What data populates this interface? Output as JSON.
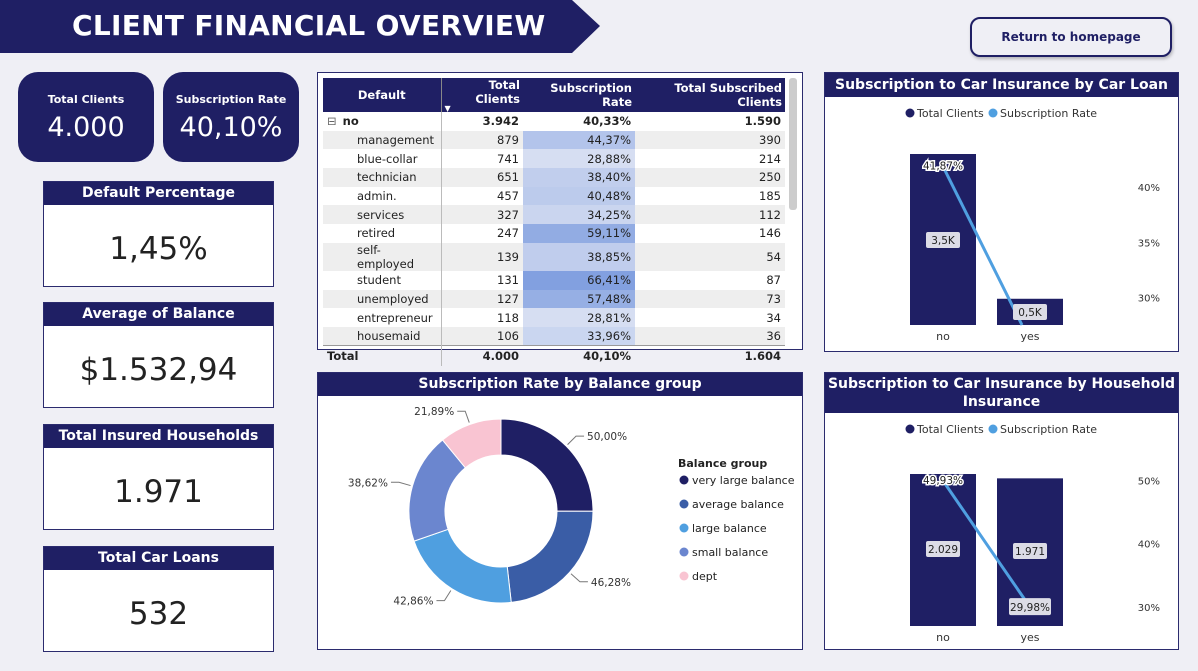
{
  "header": {
    "title": "CLIENT FINANCIAL OVERVIEW",
    "home_button": "Return to homepage"
  },
  "kpis": {
    "total_clients": {
      "label": "Total Clients",
      "value": "4.000"
    },
    "subscription_rate": {
      "label": "Subscription Rate",
      "value": "40,10%"
    },
    "default_percentage": {
      "label": "Default Percentage",
      "value": "1,45%"
    },
    "average_balance": {
      "label": "Average of Balance",
      "value": "$1.532,94"
    },
    "insured_households": {
      "label": "Total Insured Households",
      "value": "1.971"
    },
    "car_loans": {
      "label": "Total Car Loans",
      "value": "532"
    }
  },
  "table": {
    "columns": [
      "Default",
      "Total Clients",
      "Subscription Rate",
      "Total Subscribed Clients"
    ],
    "group": {
      "expander": "⊟",
      "label": "no",
      "total": "3.942",
      "rate": "40,33%",
      "subscribed": "1.590"
    },
    "rows": [
      {
        "job": "management",
        "total": "879",
        "rate": "44,37%",
        "rate_value": 44.37,
        "subscribed": "390"
      },
      {
        "job": "blue-collar",
        "total": "741",
        "rate": "28,88%",
        "rate_value": 28.88,
        "subscribed": "214"
      },
      {
        "job": "technician",
        "total": "651",
        "rate": "38,40%",
        "rate_value": 38.4,
        "subscribed": "250"
      },
      {
        "job": "admin.",
        "total": "457",
        "rate": "40,48%",
        "rate_value": 40.48,
        "subscribed": "185"
      },
      {
        "job": "services",
        "total": "327",
        "rate": "34,25%",
        "rate_value": 34.25,
        "subscribed": "112"
      },
      {
        "job": "retired",
        "total": "247",
        "rate": "59,11%",
        "rate_value": 59.11,
        "subscribed": "146"
      },
      {
        "job": "self-employed",
        "total": "139",
        "rate": "38,85%",
        "rate_value": 38.85,
        "subscribed": "54"
      },
      {
        "job": "student",
        "total": "131",
        "rate": "66,41%",
        "rate_value": 66.41,
        "subscribed": "87"
      },
      {
        "job": "unemployed",
        "total": "127",
        "rate": "57,48%",
        "rate_value": 57.48,
        "subscribed": "73"
      },
      {
        "job": "entrepreneur",
        "total": "118",
        "rate": "28,81%",
        "rate_value": 28.81,
        "subscribed": "34"
      },
      {
        "job": "housemaid",
        "total": "106",
        "rate": "33,96%",
        "rate_value": 33.96,
        "subscribed": "36"
      }
    ],
    "total": {
      "label": "Total",
      "total": "4.000",
      "rate": "40,10%",
      "subscribed": "1.604"
    }
  },
  "colors": {
    "navy": "#1f1f64",
    "line": "#4f9fe0",
    "pie": [
      "#1f1f64",
      "#3a5da6",
      "#4f9fe0",
      "#6b86cf",
      "#f9c4d2"
    ]
  },
  "chart_data": [
    {
      "type": "bar",
      "title": "Subscription to Car Insurance by Car Loan",
      "legend": [
        "Total Clients",
        "Subscription Rate"
      ],
      "categories": [
        "no",
        "yes"
      ],
      "series": [
        {
          "name": "Total Clients",
          "values": [
            3468,
            532
          ],
          "labels": [
            "3,5K",
            "0,5K"
          ]
        },
        {
          "name": "Subscription Rate",
          "type": "line",
          "values": [
            41.87,
            27.5
          ],
          "labels": [
            "41,87%",
            ""
          ]
        }
      ],
      "y2_ticks": [
        "40%",
        "35%",
        "30%"
      ],
      "y2_tick_values": [
        40,
        35,
        30
      ],
      "y2lim": [
        27.5,
        43
      ]
    },
    {
      "type": "pie",
      "title": "Subscription Rate by Balance group",
      "legend_title": "Balance group",
      "categories": [
        "very large balance",
        "average balance",
        "large balance",
        "small balance",
        "dept"
      ],
      "values": [
        50.0,
        46.28,
        42.86,
        38.62,
        21.89
      ],
      "labels": [
        "50,00%",
        "46,28%",
        "42,86%",
        "38,62%",
        "21,89%"
      ]
    },
    {
      "type": "bar",
      "title": "Subscription to Car Insurance by Household Insurance",
      "legend": [
        "Total Clients",
        "Subscription Rate"
      ],
      "categories": [
        "no",
        "yes"
      ],
      "series": [
        {
          "name": "Total Clients",
          "values": [
            2029,
            1971
          ],
          "labels": [
            "2.029",
            "1.971"
          ]
        },
        {
          "name": "Subscription Rate",
          "type": "line",
          "values": [
            49.93,
            29.98
          ],
          "labels": [
            "49,93%",
            "29,98%"
          ]
        }
      ],
      "y2_ticks": [
        "50%",
        "40%",
        "30%"
      ],
      "y2_tick_values": [
        50,
        40,
        30
      ],
      "y2lim": [
        27,
        51
      ]
    }
  ]
}
